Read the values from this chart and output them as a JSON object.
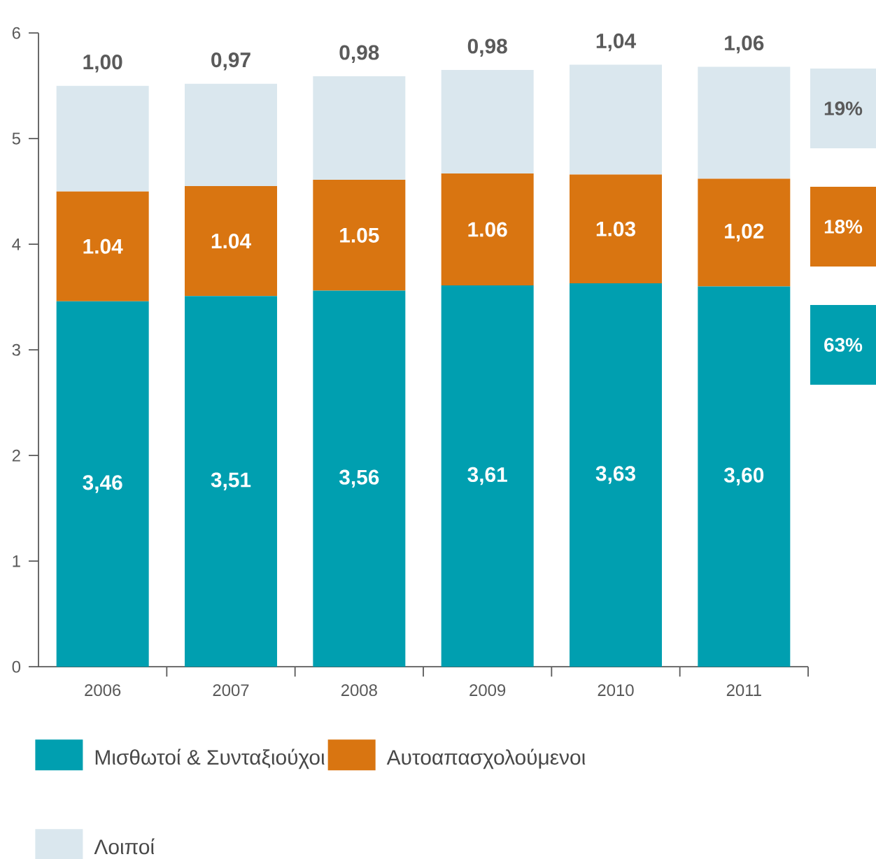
{
  "chart_data": {
    "type": "bar",
    "stacked": true,
    "categories": [
      "2006",
      "2007",
      "2008",
      "2009",
      "2010",
      "2011"
    ],
    "series": [
      {
        "name": "Μισθωτοί & Συνταξιούχοι",
        "color": "#009fb0",
        "values": [
          3.46,
          3.51,
          3.56,
          3.61,
          3.63,
          3.6
        ],
        "value_labels": [
          "3,46",
          "3,51",
          "3,56",
          "3,61",
          "3,63",
          "3,60"
        ]
      },
      {
        "name": "Αυτοαπασχολούμενοι",
        "color": "#d97511",
        "values": [
          1.04,
          1.04,
          1.05,
          1.06,
          1.03,
          1.02
        ],
        "value_labels": [
          "1.04",
          "1.04",
          "1.05",
          "1.06",
          "1.03",
          "1,02"
        ]
      },
      {
        "name": "Λοιποί",
        "color": "#dae7ee",
        "values": [
          1.0,
          0.97,
          0.98,
          0.98,
          1.04,
          1.06
        ],
        "value_labels": [
          "1,00",
          "0,97",
          "0,98",
          "0,98",
          "1,04",
          "1,06"
        ]
      }
    ],
    "annotations": [
      "19%",
      "18%",
      "63%"
    ],
    "ylim": [
      0,
      6
    ],
    "yticks": [
      0,
      1,
      2,
      3,
      4,
      5,
      6
    ],
    "legend": "bottom"
  }
}
